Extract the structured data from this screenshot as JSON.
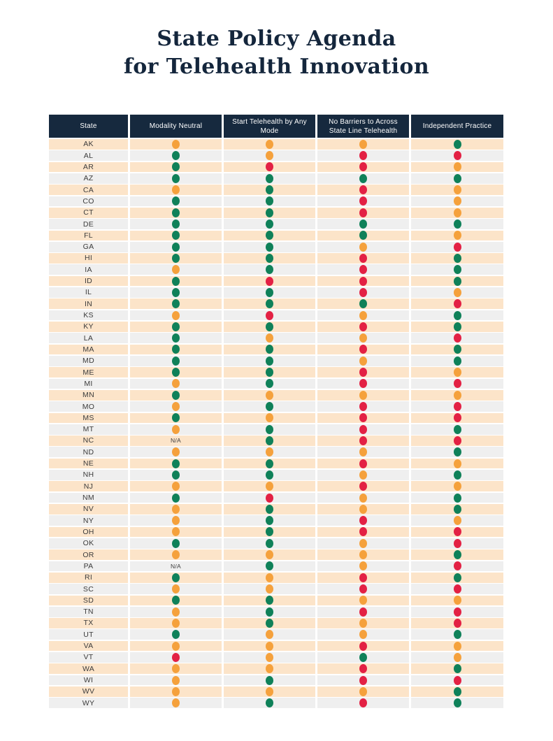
{
  "title": {
    "line1": "State Policy Agenda",
    "line2": "for Telehealth Innovation"
  },
  "theme": {
    "header_bg": "#16293e",
    "header_text": "#ffffff",
    "row_odd_bg": "#fce4c9",
    "row_even_bg": "#efefef",
    "title_color": "#14263c"
  },
  "chart_data": {
    "type": "table",
    "title": "State Policy Agenda for Telehealth Innovation",
    "columns": [
      "State",
      "Modality Neutral",
      "Start Telehealth by Any Mode",
      "No Barriers to Across State Line Telehealth",
      "Independent Practice"
    ],
    "na_label": "N/A",
    "status_colors": {
      "green": "#0f8159",
      "orange": "#f5a13c",
      "red": "#e32144"
    },
    "rows": [
      {
        "state": "AK",
        "values": [
          "orange",
          "orange",
          "orange",
          "green"
        ]
      },
      {
        "state": "AL",
        "values": [
          "green",
          "orange",
          "red",
          "red"
        ]
      },
      {
        "state": "AR",
        "values": [
          "green",
          "red",
          "red",
          "orange"
        ]
      },
      {
        "state": "AZ",
        "values": [
          "green",
          "green",
          "green",
          "green"
        ]
      },
      {
        "state": "CA",
        "values": [
          "orange",
          "green",
          "red",
          "orange"
        ]
      },
      {
        "state": "CO",
        "values": [
          "green",
          "green",
          "red",
          "orange"
        ]
      },
      {
        "state": "CT",
        "values": [
          "green",
          "green",
          "red",
          "orange"
        ]
      },
      {
        "state": "DE",
        "values": [
          "green",
          "green",
          "green",
          "green"
        ]
      },
      {
        "state": "FL",
        "values": [
          "green",
          "green",
          "green",
          "orange"
        ]
      },
      {
        "state": "GA",
        "values": [
          "green",
          "green",
          "orange",
          "red"
        ]
      },
      {
        "state": "HI",
        "values": [
          "green",
          "green",
          "red",
          "green"
        ]
      },
      {
        "state": "IA",
        "values": [
          "orange",
          "green",
          "red",
          "green"
        ]
      },
      {
        "state": "ID",
        "values": [
          "green",
          "red",
          "red",
          "green"
        ]
      },
      {
        "state": "IL",
        "values": [
          "green",
          "green",
          "red",
          "orange"
        ]
      },
      {
        "state": "IN",
        "values": [
          "green",
          "green",
          "green",
          "red"
        ]
      },
      {
        "state": "KS",
        "values": [
          "orange",
          "red",
          "orange",
          "green"
        ]
      },
      {
        "state": "KY",
        "values": [
          "green",
          "green",
          "red",
          "green"
        ]
      },
      {
        "state": "LA",
        "values": [
          "green",
          "orange",
          "orange",
          "red"
        ]
      },
      {
        "state": "MA",
        "values": [
          "green",
          "green",
          "red",
          "green"
        ]
      },
      {
        "state": "MD",
        "values": [
          "green",
          "green",
          "orange",
          "green"
        ]
      },
      {
        "state": "ME",
        "values": [
          "green",
          "green",
          "red",
          "orange"
        ]
      },
      {
        "state": "MI",
        "values": [
          "orange",
          "green",
          "red",
          "red"
        ]
      },
      {
        "state": "MN",
        "values": [
          "green",
          "orange",
          "orange",
          "orange"
        ]
      },
      {
        "state": "MO",
        "values": [
          "orange",
          "green",
          "red",
          "red"
        ]
      },
      {
        "state": "MS",
        "values": [
          "green",
          "orange",
          "red",
          "red"
        ]
      },
      {
        "state": "MT",
        "values": [
          "orange",
          "green",
          "red",
          "green"
        ]
      },
      {
        "state": "NC",
        "values": [
          "na",
          "green",
          "red",
          "red"
        ]
      },
      {
        "state": "ND",
        "values": [
          "orange",
          "orange",
          "orange",
          "green"
        ]
      },
      {
        "state": "NE",
        "values": [
          "green",
          "green",
          "red",
          "orange"
        ]
      },
      {
        "state": "NH",
        "values": [
          "green",
          "green",
          "orange",
          "green"
        ]
      },
      {
        "state": "NJ",
        "values": [
          "orange",
          "orange",
          "red",
          "orange"
        ]
      },
      {
        "state": "NM",
        "values": [
          "green",
          "red",
          "orange",
          "green"
        ]
      },
      {
        "state": "NV",
        "values": [
          "orange",
          "green",
          "orange",
          "green"
        ]
      },
      {
        "state": "NY",
        "values": [
          "orange",
          "green",
          "red",
          "orange"
        ]
      },
      {
        "state": "OH",
        "values": [
          "orange",
          "green",
          "red",
          "red"
        ]
      },
      {
        "state": "OK",
        "values": [
          "green",
          "green",
          "orange",
          "red"
        ]
      },
      {
        "state": "OR",
        "values": [
          "orange",
          "orange",
          "orange",
          "green"
        ]
      },
      {
        "state": "PA",
        "values": [
          "na",
          "green",
          "orange",
          "red"
        ]
      },
      {
        "state": "RI",
        "values": [
          "green",
          "orange",
          "red",
          "green"
        ]
      },
      {
        "state": "SC",
        "values": [
          "orange",
          "orange",
          "red",
          "red"
        ]
      },
      {
        "state": "SD",
        "values": [
          "green",
          "green",
          "orange",
          "orange"
        ]
      },
      {
        "state": "TN",
        "values": [
          "orange",
          "green",
          "red",
          "red"
        ]
      },
      {
        "state": "TX",
        "values": [
          "orange",
          "green",
          "orange",
          "red"
        ]
      },
      {
        "state": "UT",
        "values": [
          "green",
          "orange",
          "orange",
          "green"
        ]
      },
      {
        "state": "VA",
        "values": [
          "orange",
          "orange",
          "red",
          "orange"
        ]
      },
      {
        "state": "VT",
        "values": [
          "red",
          "orange",
          "green",
          "orange"
        ]
      },
      {
        "state": "WA",
        "values": [
          "orange",
          "orange",
          "red",
          "green"
        ]
      },
      {
        "state": "WI",
        "values": [
          "orange",
          "green",
          "red",
          "red"
        ]
      },
      {
        "state": "WV",
        "values": [
          "orange",
          "orange",
          "orange",
          "green"
        ]
      },
      {
        "state": "WY",
        "values": [
          "orange",
          "green",
          "red",
          "green"
        ]
      }
    ]
  }
}
